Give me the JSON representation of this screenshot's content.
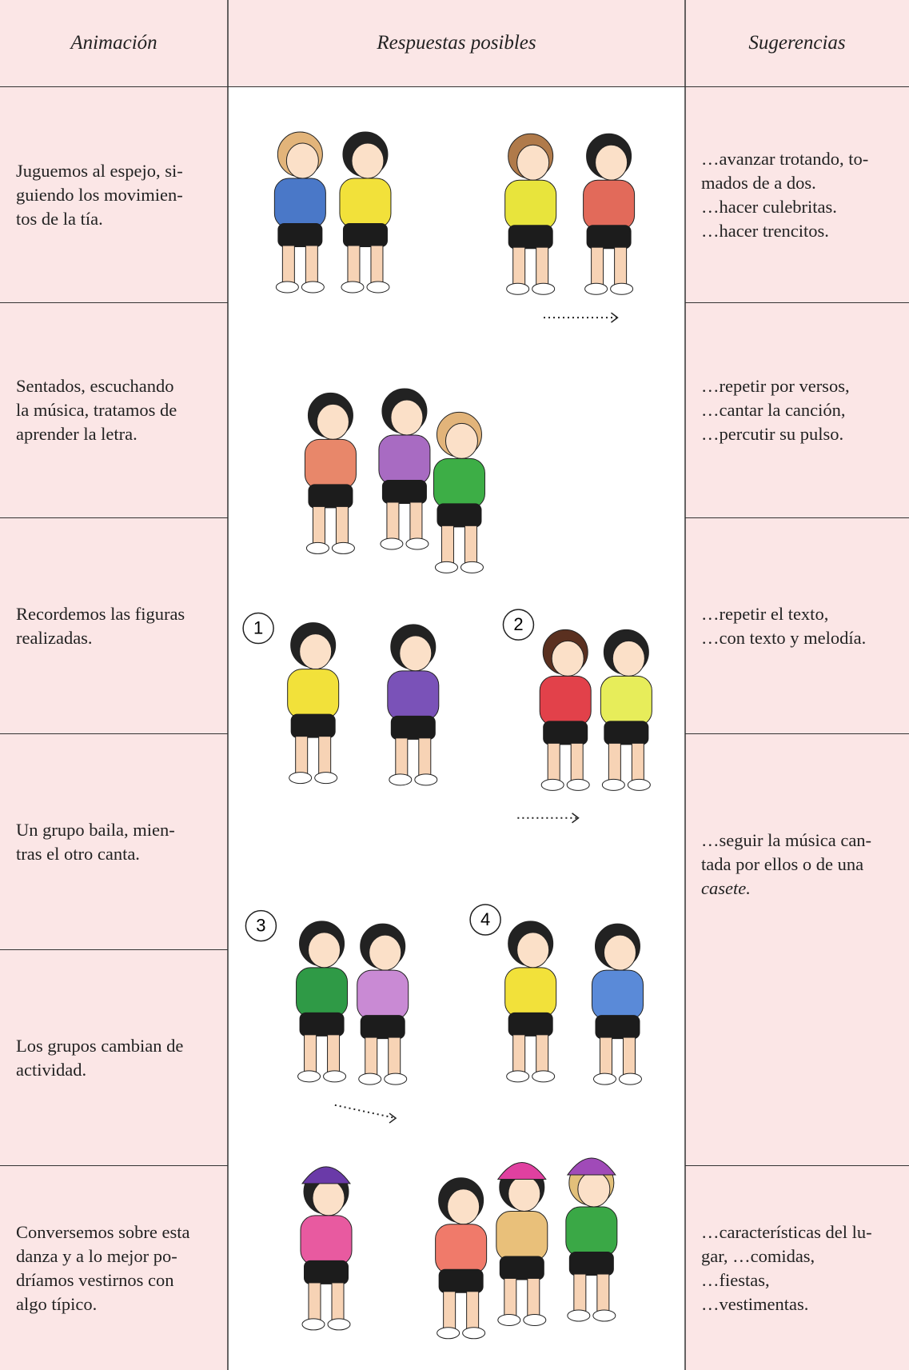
{
  "table": {
    "headers": [
      "Animación",
      "Respuestas posibles",
      "Sugerencias"
    ],
    "animacion": [
      [
        "Juguemos al espejo, si-",
        "guiendo los movimien-",
        "tos de la tía."
      ],
      [
        "Sentados, escuchando",
        "la música, tratamos de",
        "aprender la letra."
      ],
      [
        "Recordemos las figuras",
        "realizadas."
      ],
      [
        "Un grupo baila, mien-",
        "tras el otro canta."
      ],
      [
        "Los grupos cambian de",
        "actividad."
      ],
      [
        "Conversemos sobre esta",
        "danza y a lo mejor po-",
        "dríamos vestirnos con",
        "algo típico."
      ]
    ],
    "sugerencias": [
      [
        "…avanzar trotando, to-",
        "mados de a dos.",
        "…hacer culebritas.",
        "…hacer trencitos."
      ],
      [
        "…repetir por versos,",
        "…cantar la canción,",
        "…percutir su pulso."
      ],
      [
        "…repetir el texto,",
        "…con texto y melodía."
      ],
      [
        "…seguir la música can-",
        "tada por ellos o de una",
        "casete."
      ],
      [
        "…características del lu-",
        "gar, …comidas,",
        "…fiestas,",
        "…vestimentas."
      ]
    ],
    "figure_numbers": [
      "1",
      "2",
      "3",
      "4"
    ]
  }
}
